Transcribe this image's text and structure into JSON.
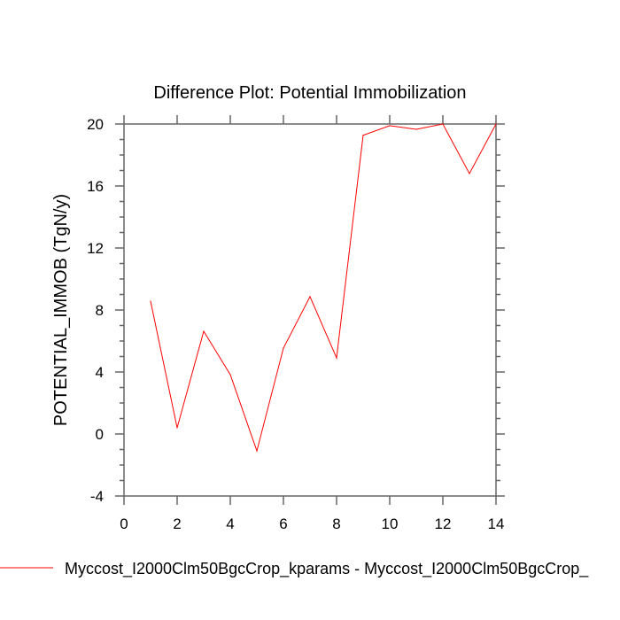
{
  "chart_data": {
    "type": "line",
    "title": "Difference Plot: Potential Immobilization",
    "xlabel": "",
    "ylabel": "POTENTIAL_IMMOB  (TgN/y)",
    "xlim": [
      0,
      14
    ],
    "ylim": [
      -4,
      20
    ],
    "xticks": [
      0,
      2,
      4,
      6,
      8,
      10,
      12,
      14
    ],
    "yticks": [
      -4,
      0,
      4,
      8,
      12,
      16,
      20
    ],
    "grid": false,
    "legend_position": "bottom",
    "series": [
      {
        "name": "Myccost_I2000Clm50BgcCrop_kparams - Myccost_I2000Clm50BgcCrop_",
        "color": "#ff0000",
        "x": [
          1,
          2,
          3,
          4,
          5,
          6,
          7,
          8,
          9,
          10,
          11,
          12,
          13,
          14
        ],
        "y": [
          8.57,
          0.4,
          6.63,
          3.83,
          -1.09,
          5.54,
          8.86,
          4.91,
          19.27,
          19.89,
          19.66,
          20.0,
          16.8,
          20.0
        ]
      }
    ]
  }
}
